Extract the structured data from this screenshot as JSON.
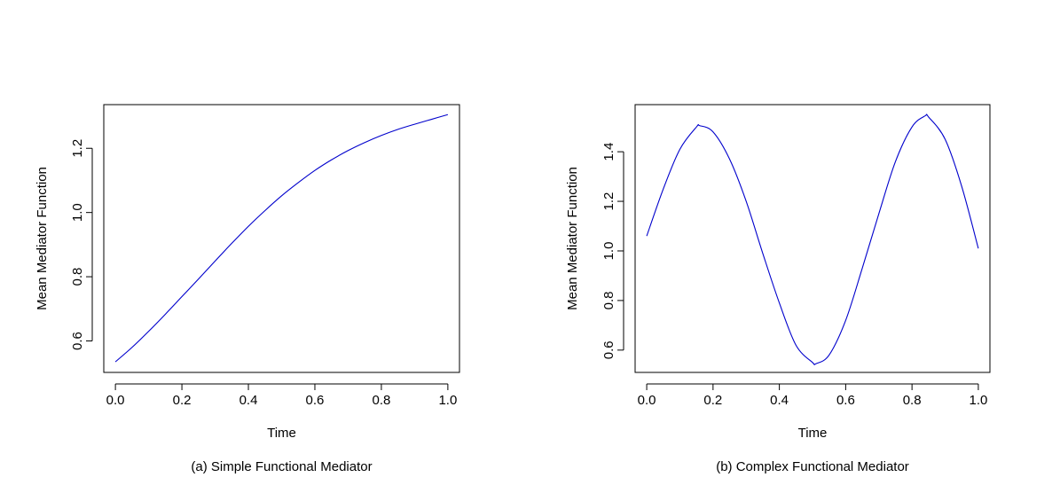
{
  "chart_data": [
    {
      "type": "line",
      "caption": "(a) Simple Functional Mediator",
      "xlabel": "Time",
      "ylabel": "Mean Mediator Function",
      "xlim": [
        -0.035,
        1.035
      ],
      "ylim": [
        0.502,
        1.336
      ],
      "xticks": [
        "0.0",
        "0.2",
        "0.4",
        "0.6",
        "0.8",
        "1.0"
      ],
      "yticks": [
        "0.6",
        "0.8",
        "1.0",
        "1.2"
      ],
      "legend": "none",
      "grid": false,
      "line_color": "#0000cc",
      "series": [
        {
          "x": [
            0.0,
            0.05,
            0.1,
            0.15,
            0.2,
            0.25,
            0.3,
            0.35,
            0.4,
            0.45,
            0.5,
            0.55,
            0.6,
            0.65,
            0.7,
            0.75,
            0.8,
            0.85,
            0.9,
            0.95,
            1.0
          ],
          "values": [
            0.535,
            0.58,
            0.63,
            0.683,
            0.738,
            0.793,
            0.849,
            0.904,
            0.957,
            1.006,
            1.052,
            1.093,
            1.131,
            1.164,
            1.193,
            1.218,
            1.24,
            1.259,
            1.275,
            1.29,
            1.305
          ]
        }
      ]
    },
    {
      "type": "line",
      "caption": "(b) Complex Functional Mediator",
      "xlabel": "Time",
      "ylabel": "Mean Mediator Function",
      "xlim": [
        -0.035,
        1.035
      ],
      "ylim": [
        0.51,
        1.59
      ],
      "xticks": [
        "0.0",
        "0.2",
        "0.4",
        "0.6",
        "0.8",
        "1.0"
      ],
      "yticks": [
        "0.6",
        "0.8",
        "1.0",
        "1.2",
        "1.4"
      ],
      "legend": "none",
      "grid": false,
      "line_color": "#0000cc",
      "series": [
        {
          "x": [
            0.0,
            0.05,
            0.1,
            0.15,
            0.16,
            0.2,
            0.25,
            0.3,
            0.35,
            0.4,
            0.45,
            0.5,
            0.51,
            0.55,
            0.6,
            0.65,
            0.7,
            0.75,
            0.8,
            0.84,
            0.85,
            0.9,
            0.95,
            1.0
          ],
          "values": [
            1.06,
            1.25,
            1.41,
            1.5,
            1.505,
            1.48,
            1.37,
            1.2,
            0.99,
            0.79,
            0.62,
            0.55,
            0.545,
            0.58,
            0.72,
            0.93,
            1.15,
            1.36,
            1.5,
            1.545,
            1.54,
            1.45,
            1.26,
            1.01
          ]
        }
      ]
    }
  ]
}
